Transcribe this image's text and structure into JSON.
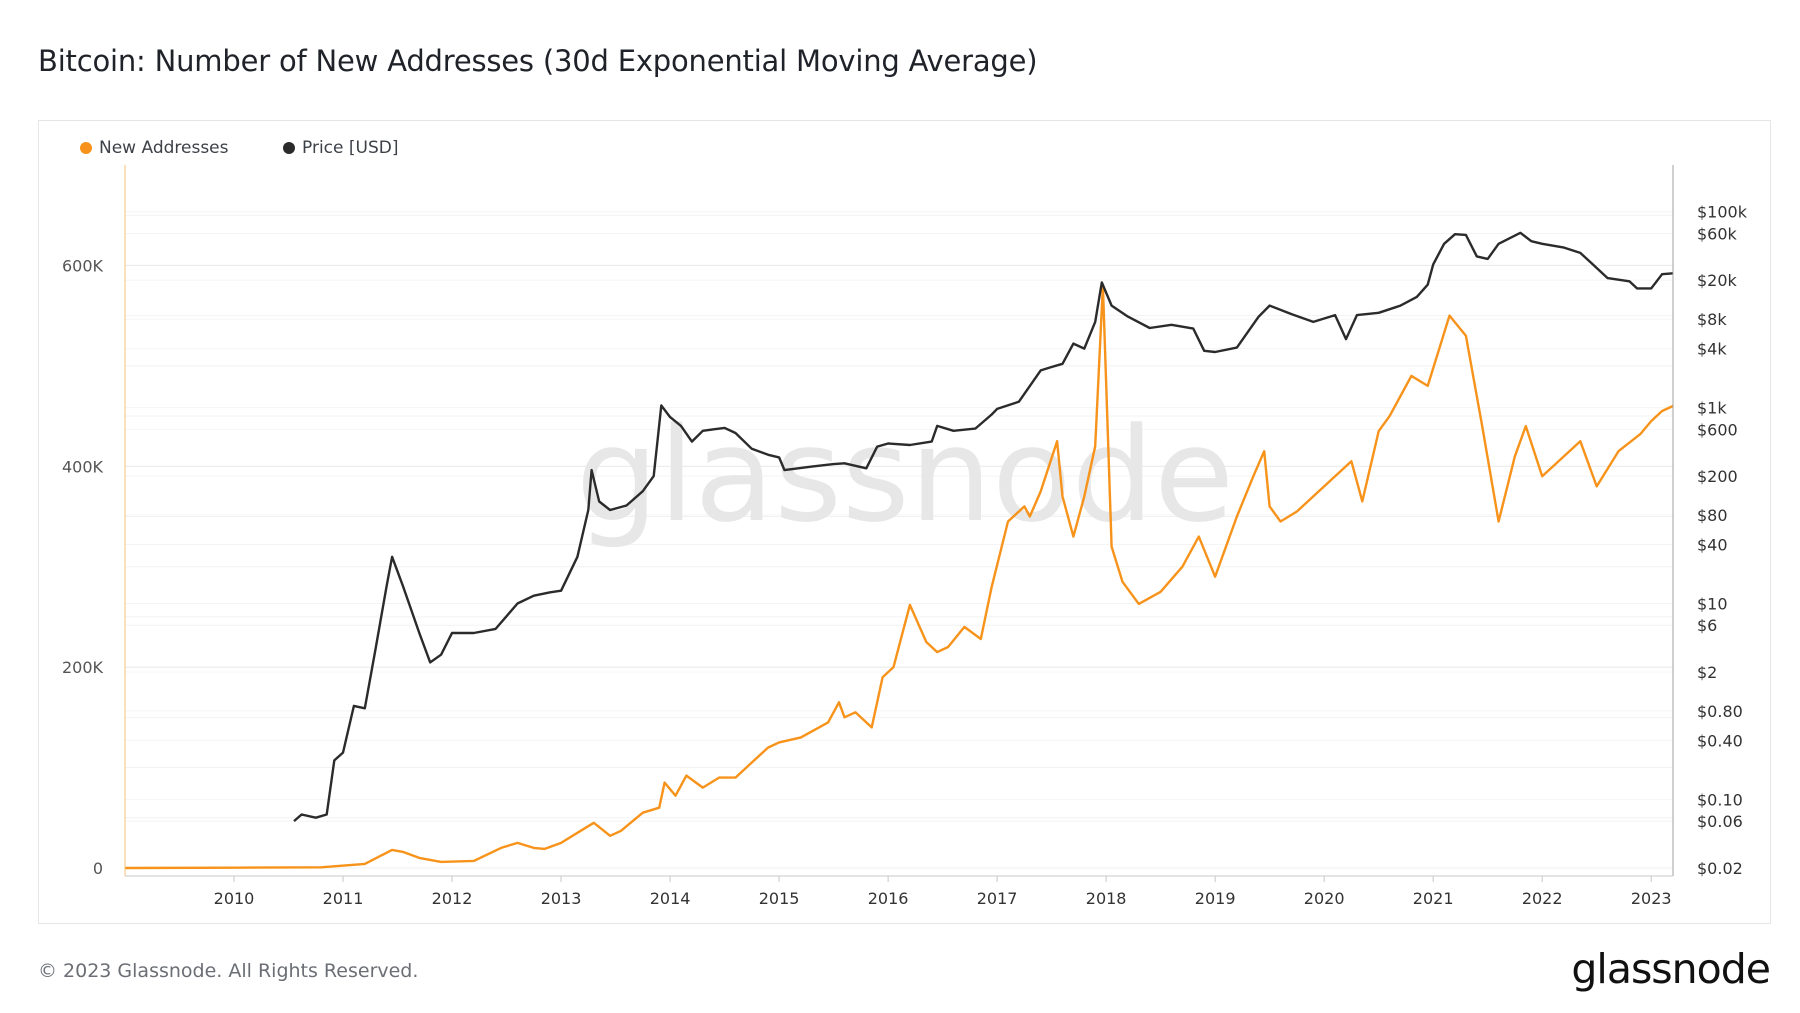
{
  "title": "Bitcoin: Number of New Addresses (30d Exponential Moving Average)",
  "footer": {
    "copyright": "© 2023 Glassnode. All Rights Reserved.",
    "logo": "glassnode"
  },
  "watermark": "glassnode",
  "colors": {
    "new_addresses": "#f7931a",
    "price": "#2b2b2b",
    "grid": "#ececec",
    "watermark": "#e6e6e6"
  },
  "chart_data": {
    "type": "line",
    "title": "Bitcoin: Number of New Addresses (30d Exponential Moving Average)",
    "legend_position": "top-left",
    "grid": true,
    "x_ticks": [
      "2010",
      "2011",
      "2012",
      "2013",
      "2014",
      "2015",
      "2016",
      "2017",
      "2018",
      "2019",
      "2020",
      "2021",
      "2022",
      "2023"
    ],
    "x_range": [
      2009.0,
      2023.2
    ],
    "y_left": {
      "ticks": [
        0,
        200000,
        400000,
        600000
      ],
      "tick_labels": [
        "0",
        "200K",
        "400K",
        "600K"
      ],
      "range": [
        -8000,
        700000
      ]
    },
    "y_right": {
      "scale": "log",
      "ticks": [
        0.02,
        0.06,
        0.1,
        0.4,
        0.8,
        2,
        6,
        10,
        40,
        80,
        200,
        600,
        1000,
        4000,
        8000,
        20000,
        60000,
        100000
      ],
      "tick_labels": [
        "$0.02",
        "$0.06",
        "$0.10",
        "$0.40",
        "$0.80",
        "$2",
        "$6",
        "$10",
        "$40",
        "$80",
        "$200",
        "$600",
        "$1k",
        "$4k",
        "$8k",
        "$20k",
        "$60k",
        "$100k"
      ],
      "range": [
        0.0165,
        300000
      ]
    },
    "series": [
      {
        "name": "New Addresses",
        "axis": "left",
        "x": [
          2009.0,
          2010.0,
          2010.8,
          2011.2,
          2011.45,
          2011.55,
          2011.7,
          2011.9,
          2012.2,
          2012.45,
          2012.6,
          2012.75,
          2012.85,
          2013.0,
          2013.15,
          2013.3,
          2013.45,
          2013.55,
          2013.75,
          2013.9,
          2013.95,
          2014.05,
          2014.15,
          2014.3,
          2014.45,
          2014.6,
          2014.75,
          2014.9,
          2015.0,
          2015.2,
          2015.45,
          2015.55,
          2015.6,
          2015.7,
          2015.85,
          2015.95,
          2016.05,
          2016.2,
          2016.35,
          2016.45,
          2016.55,
          2016.7,
          2016.85,
          2016.95,
          2017.1,
          2017.25,
          2017.3,
          2017.4,
          2017.55,
          2017.6,
          2017.7,
          2017.8,
          2017.9,
          2017.97,
          2018.05,
          2018.15,
          2018.3,
          2018.5,
          2018.7,
          2018.85,
          2019.0,
          2019.2,
          2019.35,
          2019.45,
          2019.5,
          2019.6,
          2019.75,
          2019.95,
          2020.1,
          2020.25,
          2020.35,
          2020.5,
          2020.6,
          2020.8,
          2020.95,
          2021.05,
          2021.15,
          2021.3,
          2021.45,
          2021.6,
          2021.75,
          2021.85,
          2022.0,
          2022.2,
          2022.35,
          2022.5,
          2022.7,
          2022.9,
          2023.0,
          2023.1,
          2023.2
        ],
        "values": [
          0,
          300,
          700,
          4000,
          18000,
          16000,
          10000,
          6000,
          7000,
          20000,
          25000,
          20000,
          19000,
          25000,
          35000,
          45000,
          32000,
          37000,
          55000,
          60000,
          85000,
          72000,
          92000,
          80000,
          90000,
          90000,
          105000,
          120000,
          125000,
          130000,
          145000,
          165000,
          150000,
          155000,
          140000,
          190000,
          200000,
          262000,
          225000,
          215000,
          220000,
          240000,
          228000,
          280000,
          345000,
          360000,
          350000,
          375000,
          425000,
          370000,
          330000,
          370000,
          420000,
          580000,
          320000,
          285000,
          263000,
          275000,
          300000,
          330000,
          290000,
          350000,
          390000,
          415000,
          360000,
          345000,
          355000,
          375000,
          390000,
          405000,
          365000,
          435000,
          450000,
          490000,
          480000,
          515000,
          550000,
          530000,
          440000,
          345000,
          410000,
          440000,
          390000,
          410000,
          425000,
          380000,
          415000,
          432000,
          445000,
          455000,
          460000
        ]
      },
      {
        "name": "Price [USD]",
        "axis": "right",
        "x": [
          2010.55,
          2010.62,
          2010.75,
          2010.85,
          2010.92,
          2011.0,
          2011.1,
          2011.2,
          2011.3,
          2011.4,
          2011.45,
          2011.55,
          2011.7,
          2011.8,
          2011.9,
          2012.0,
          2012.2,
          2012.4,
          2012.6,
          2012.75,
          2012.9,
          2013.0,
          2013.15,
          2013.25,
          2013.28,
          2013.35,
          2013.45,
          2013.6,
          2013.75,
          2013.85,
          2013.92,
          2014.0,
          2014.1,
          2014.2,
          2014.3,
          2014.4,
          2014.5,
          2014.6,
          2014.75,
          2014.9,
          2015.0,
          2015.05,
          2015.3,
          2015.5,
          2015.6,
          2015.8,
          2015.9,
          2016.0,
          2016.2,
          2016.4,
          2016.45,
          2016.6,
          2016.8,
          2016.95,
          2017.0,
          2017.2,
          2017.4,
          2017.5,
          2017.6,
          2017.7,
          2017.8,
          2017.9,
          2017.96,
          2018.05,
          2018.2,
          2018.4,
          2018.6,
          2018.8,
          2018.9,
          2019.0,
          2019.2,
          2019.4,
          2019.5,
          2019.7,
          2019.9,
          2020.1,
          2020.2,
          2020.3,
          2020.5,
          2020.7,
          2020.85,
          2020.95,
          2021.0,
          2021.1,
          2021.2,
          2021.3,
          2021.4,
          2021.5,
          2021.6,
          2021.8,
          2021.9,
          2022.0,
          2022.2,
          2022.35,
          2022.45,
          2022.6,
          2022.8,
          2022.87,
          2023.0,
          2023.1,
          2023.2
        ],
        "values": [
          0.06,
          0.07,
          0.065,
          0.07,
          0.25,
          0.3,
          0.9,
          0.85,
          3.5,
          15,
          30,
          15,
          5,
          2.5,
          3.0,
          5.0,
          5.0,
          5.5,
          10,
          12,
          13,
          13.5,
          30,
          90,
          230,
          110,
          90,
          100,
          140,
          200,
          1050,
          800,
          650,
          450,
          580,
          600,
          620,
          550,
          380,
          330,
          310,
          230,
          250,
          265,
          270,
          240,
          400,
          430,
          415,
          450,
          650,
          580,
          610,
          850,
          970,
          1150,
          2400,
          2600,
          2800,
          4500,
          4000,
          7500,
          19000,
          11000,
          8500,
          6500,
          7000,
          6400,
          3800,
          3700,
          4100,
          8500,
          11000,
          9000,
          7500,
          8800,
          5000,
          8800,
          9300,
          11000,
          13500,
          18000,
          29000,
          47000,
          59000,
          58000,
          35000,
          33000,
          47000,
          61000,
          50000,
          47000,
          43000,
          38000,
          30000,
          21000,
          19500,
          16500,
          16500,
          23000,
          23500
        ]
      }
    ]
  }
}
